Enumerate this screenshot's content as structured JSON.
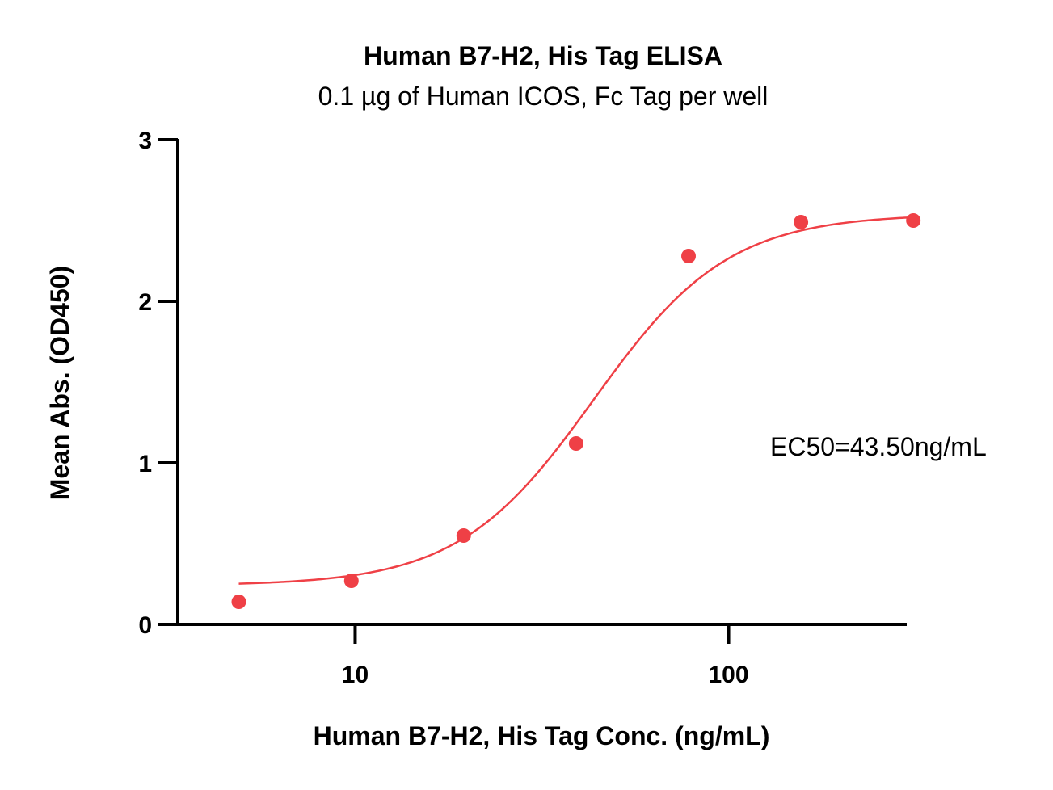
{
  "chart_data": {
    "type": "scatter",
    "title": "Human B7-H2, His Tag ELISA",
    "subtitle": "0.1 µg of Human ICOS, Fc Tag per well",
    "xlabel": "Human B7-H2, His Tag Conc. (ng/mL)",
    "ylabel": "Mean Abs. (OD450)",
    "xscale": "log",
    "xlim": [
      3.35,
      300
    ],
    "ylim": [
      0,
      3
    ],
    "xticks": [
      {
        "value": 10,
        "label": "10"
      },
      {
        "value": 100,
        "label": "100"
      }
    ],
    "yticks": [
      {
        "value": 0,
        "label": "0"
      },
      {
        "value": 1,
        "label": "1"
      },
      {
        "value": 2,
        "label": "2"
      },
      {
        "value": 3,
        "label": "3"
      }
    ],
    "series": [
      {
        "color": "#ef4046",
        "x": [
          4.88,
          9.77,
          19.53,
          39.06,
          78.13,
          156.25,
          312.5
        ],
        "y": [
          0.14,
          0.27,
          0.55,
          1.12,
          2.28,
          2.49,
          2.5
        ]
      }
    ],
    "fit": {
      "color": "#ef4046",
      "bottom": 0.24,
      "top": 2.54,
      "ec50": 43.5,
      "hill": 2.4
    },
    "annotation": "EC50=43.50ng/mL",
    "grid": false,
    "legend": "none"
  }
}
